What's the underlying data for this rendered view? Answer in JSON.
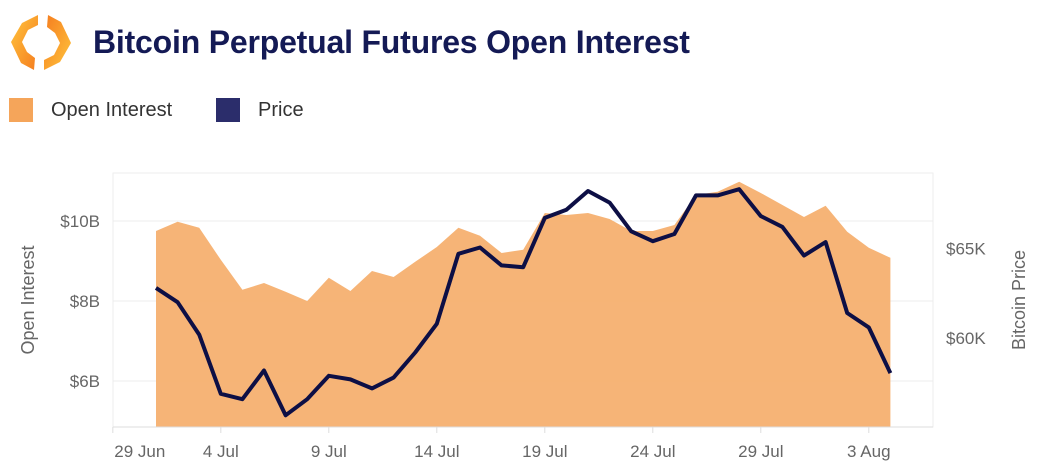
{
  "header": {
    "title": "Bitcoin Perpetual Futures Open Interest",
    "logo_icon": "hexagon-brackets-logo"
  },
  "legend": [
    {
      "label": "Open Interest",
      "color": "#f5b070"
    },
    {
      "label": "Price",
      "color": "#2b2d6b"
    }
  ],
  "chart_data": {
    "type": "area+line",
    "title": "Bitcoin Perpetual Futures Open Interest",
    "x_dates": [
      "1 Jul",
      "2 Jul",
      "3 Jul",
      "4 Jul",
      "5 Jul",
      "6 Jul",
      "7 Jul",
      "8 Jul",
      "9 Jul",
      "10 Jul",
      "11 Jul",
      "12 Jul",
      "13 Jul",
      "14 Jul",
      "15 Jul",
      "16 Jul",
      "17 Jul",
      "18 Jul",
      "19 Jul",
      "20 Jul",
      "21 Jul",
      "22 Jul",
      "23 Jul",
      "24 Jul",
      "25 Jul",
      "26 Jul",
      "27 Jul",
      "28 Jul",
      "29 Jul",
      "30 Jul",
      "31 Jul",
      "1 Aug",
      "2 Aug",
      "3 Aug",
      "4 Aug"
    ],
    "x_ticks": [
      "29 Jun",
      "4 Jul",
      "9 Jul",
      "14 Jul",
      "19 Jul",
      "24 Jul",
      "29 Jul",
      "3 Aug"
    ],
    "series": [
      {
        "name": "Open Interest",
        "type": "area",
        "axis": "left",
        "unit": "USD billions",
        "color": "#f5b070",
        "values": [
          9.75,
          9.98,
          9.83,
          9.03,
          8.28,
          8.45,
          8.23,
          8.0,
          8.58,
          8.25,
          8.75,
          8.6,
          8.98,
          9.35,
          9.83,
          9.63,
          9.2,
          9.28,
          10.2,
          10.15,
          10.2,
          10.05,
          9.75,
          9.75,
          9.9,
          10.65,
          10.73,
          10.98,
          10.7,
          10.4,
          10.1,
          10.38,
          9.73,
          9.33,
          9.08
        ]
      },
      {
        "name": "Price",
        "type": "line",
        "axis": "right",
        "unit": "USD thousands",
        "color": "#0d0f45",
        "values": [
          62.8,
          62.0,
          60.2,
          56.9,
          56.6,
          58.2,
          55.7,
          56.6,
          57.9,
          57.7,
          57.2,
          57.8,
          59.2,
          60.8,
          64.7,
          65.05,
          64.05,
          63.95,
          66.7,
          67.15,
          68.2,
          67.55,
          65.95,
          65.4,
          65.8,
          67.95,
          67.95,
          68.3,
          66.8,
          66.2,
          64.6,
          65.35,
          61.4,
          60.6,
          58.05
        ]
      }
    ],
    "left_axis": {
      "label": "Open Interest",
      "ticks": [
        "$6B",
        "$8B",
        "$10B"
      ],
      "tick_values": [
        6,
        8,
        10
      ],
      "range": [
        4.85,
        11.2
      ]
    },
    "right_axis": {
      "label": "Bitcoin Price",
      "ticks": [
        "$60K",
        "$65K"
      ],
      "tick_values": [
        60,
        65
      ],
      "range": [
        55.05,
        69.2
      ]
    },
    "grid": true,
    "legend_position": "top-left"
  }
}
